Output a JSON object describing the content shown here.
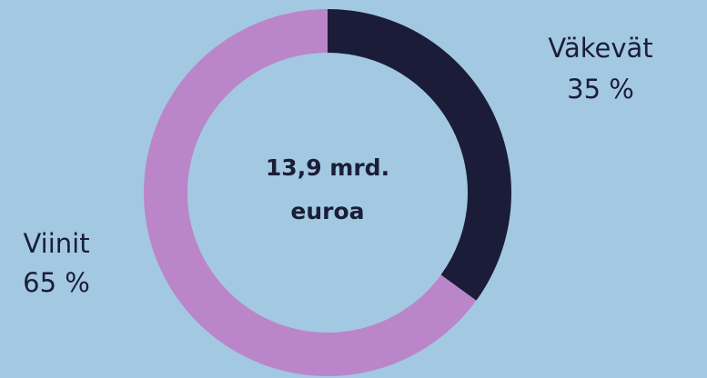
{
  "chart_data": {
    "type": "donut",
    "categories": [
      "Väkevät",
      "Viinit"
    ],
    "values": [
      35,
      65
    ],
    "value_labels": [
      "35 %",
      "65 %"
    ],
    "colors": [
      "#1b1d38",
      "#bb86c9"
    ],
    "center_label": [
      "13,9 mrd.",
      "euroa"
    ]
  }
}
